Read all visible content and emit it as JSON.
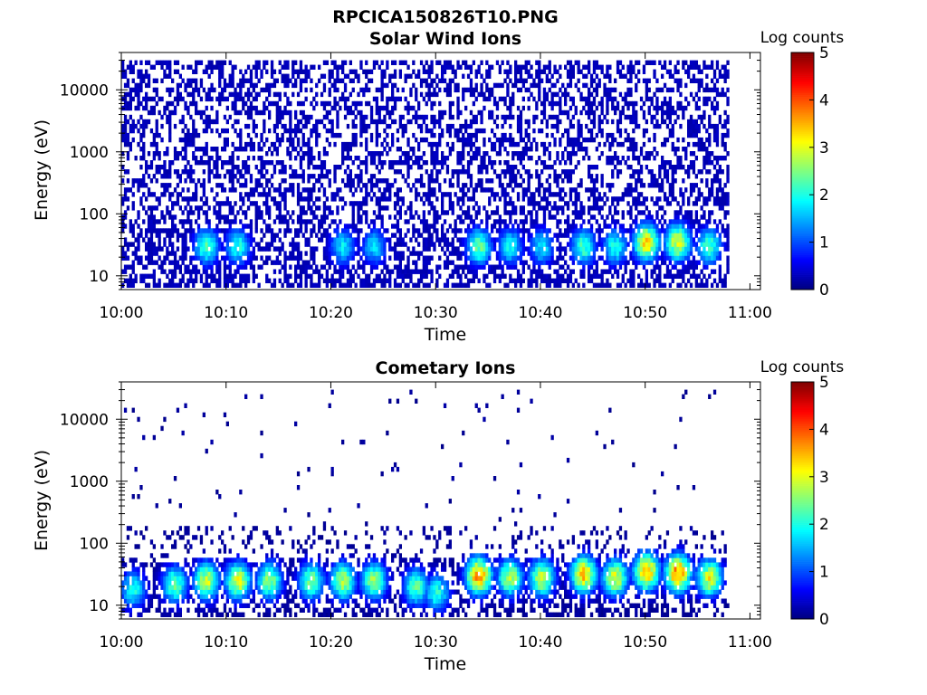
{
  "figure": {
    "title": "RPCICA150826T10.PNG",
    "background": "#ffffff"
  },
  "chart_data": [
    {
      "type": "heatmap",
      "title": "Solar Wind Ions",
      "xlabel": "Time",
      "ylabel": "Energy (eV)",
      "yscale": "log",
      "xlim": [
        "10:00",
        "11:01"
      ],
      "ylim": [
        6,
        40000
      ],
      "xticks": [
        "10:00",
        "10:10",
        "10:20",
        "10:30",
        "10:40",
        "10:50",
        "11:00"
      ],
      "yticks": [
        {
          "value": 10,
          "label": "10"
        },
        {
          "value": 100,
          "label": "100"
        },
        {
          "value": 1000,
          "label": "1000"
        },
        {
          "value": 10000,
          "label": "10000"
        }
      ],
      "data_time_range": [
        "10:00",
        "10:58"
      ],
      "colorbar": {
        "title": "Log counts",
        "ticks": [
          "0",
          "1",
          "2",
          "3",
          "4",
          "5"
        ],
        "range": [
          0,
          5
        ],
        "colormap": "jet"
      },
      "peaks": [
        {
          "time": "10:08",
          "energy": 30,
          "log_counts": 2.2
        },
        {
          "time": "10:11",
          "energy": 30,
          "log_counts": 2.0
        },
        {
          "time": "10:21",
          "energy": 30,
          "log_counts": 1.8
        },
        {
          "time": "10:24",
          "energy": 30,
          "log_counts": 1.7
        },
        {
          "time": "10:34",
          "energy": 30,
          "log_counts": 2.4
        },
        {
          "time": "10:37",
          "energy": 30,
          "log_counts": 1.9
        },
        {
          "time": "10:40",
          "energy": 30,
          "log_counts": 1.8
        },
        {
          "time": "10:44",
          "energy": 30,
          "log_counts": 2.2
        },
        {
          "time": "10:47",
          "energy": 30,
          "log_counts": 2.0
        },
        {
          "time": "10:50",
          "energy": 35,
          "log_counts": 3.2
        },
        {
          "time": "10:53",
          "energy": 35,
          "log_counts": 3.0
        },
        {
          "time": "10:56",
          "energy": 30,
          "log_counts": 2.2
        }
      ],
      "background_log_counts": 0.2
    },
    {
      "type": "heatmap",
      "title": "Cometary Ions",
      "xlabel": "Time",
      "ylabel": "Energy (eV)",
      "yscale": "log",
      "xlim": [
        "10:00",
        "11:01"
      ],
      "ylim": [
        6,
        40000
      ],
      "xticks": [
        "10:00",
        "10:10",
        "10:20",
        "10:30",
        "10:40",
        "10:50",
        "11:00"
      ],
      "yticks": [
        {
          "value": 10,
          "label": "10"
        },
        {
          "value": 100,
          "label": "100"
        },
        {
          "value": 1000,
          "label": "1000"
        },
        {
          "value": 10000,
          "label": "10000"
        }
      ],
      "data_time_range": [
        "10:00",
        "10:58"
      ],
      "colorbar": {
        "title": "Log counts",
        "ticks": [
          "0",
          "1",
          "2",
          "3",
          "4",
          "5"
        ],
        "range": [
          0,
          5
        ],
        "colormap": "jet"
      },
      "peaks": [
        {
          "time": "10:01",
          "energy": 18,
          "log_counts": 2.0
        },
        {
          "time": "10:05",
          "energy": 22,
          "log_counts": 2.4
        },
        {
          "time": "10:08",
          "energy": 25,
          "log_counts": 2.9
        },
        {
          "time": "10:11",
          "energy": 25,
          "log_counts": 3.0
        },
        {
          "time": "10:14",
          "energy": 25,
          "log_counts": 2.6
        },
        {
          "time": "10:18",
          "energy": 25,
          "log_counts": 2.5
        },
        {
          "time": "10:21",
          "energy": 25,
          "log_counts": 2.8
        },
        {
          "time": "10:24",
          "energy": 25,
          "log_counts": 2.6
        },
        {
          "time": "10:28",
          "energy": 20,
          "log_counts": 2.3
        },
        {
          "time": "10:30",
          "energy": 16,
          "log_counts": 2.1
        },
        {
          "time": "10:34",
          "energy": 30,
          "log_counts": 3.7
        },
        {
          "time": "10:37",
          "energy": 28,
          "log_counts": 2.8
        },
        {
          "time": "10:40",
          "energy": 28,
          "log_counts": 2.9
        },
        {
          "time": "10:44",
          "energy": 32,
          "log_counts": 3.4
        },
        {
          "time": "10:47",
          "energy": 28,
          "log_counts": 3.0
        },
        {
          "time": "10:50",
          "energy": 35,
          "log_counts": 3.6
        },
        {
          "time": "10:53",
          "energy": 33,
          "log_counts": 3.8
        },
        {
          "time": "10:56",
          "energy": 28,
          "log_counts": 3.0
        }
      ],
      "background_log_counts": 0.05
    }
  ]
}
